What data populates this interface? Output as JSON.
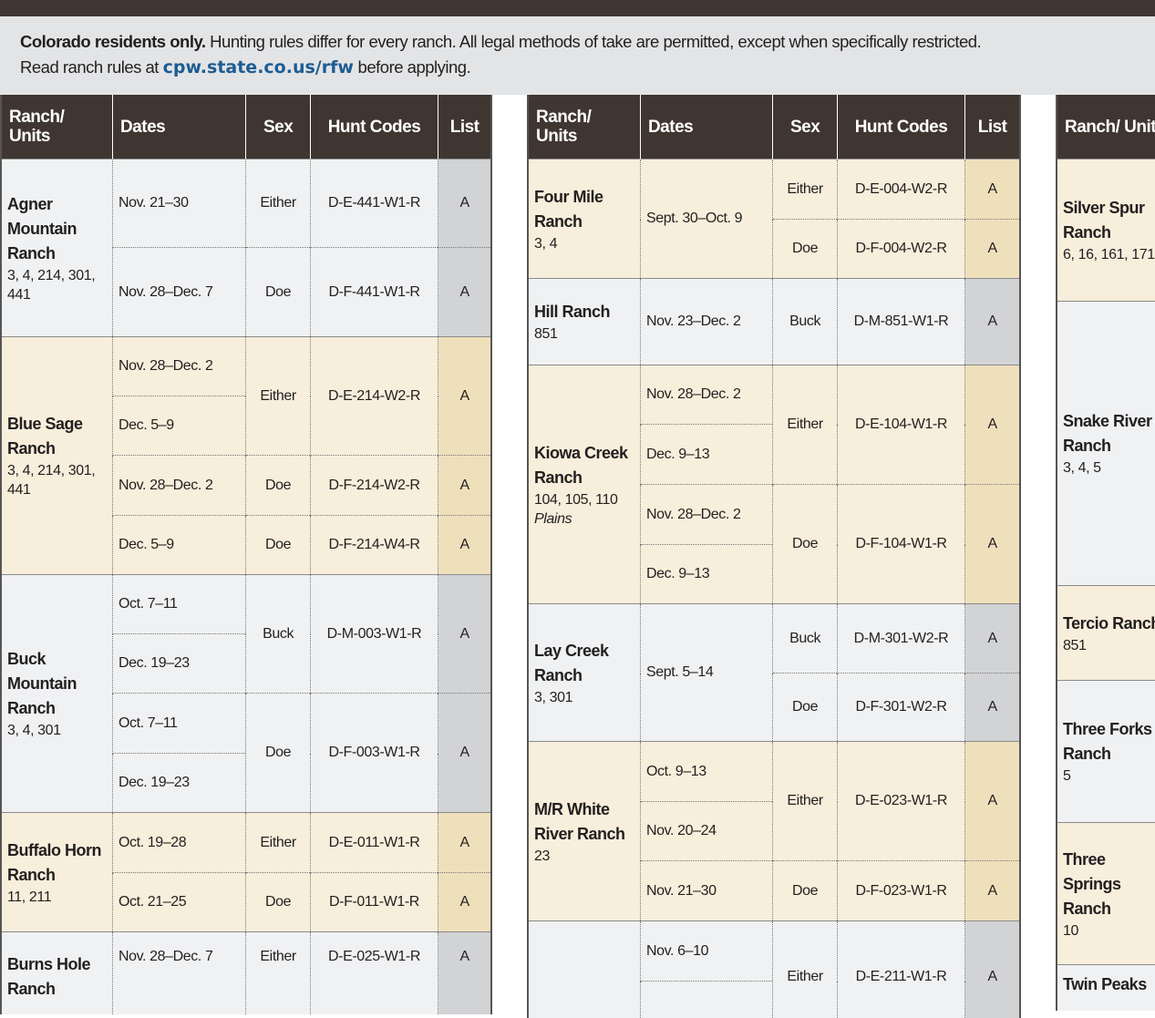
{
  "intro": {
    "lead": "Colorado residents only.",
    "text1": " Hunting rules differ for every ranch. All legal methods of take are permitted, except when specifically restricted.",
    "text2": "Read ranch rules at ",
    "url": "cpw.state.co.us/rfw",
    "text3": " before applying."
  },
  "headers": [
    "Ranch/ Units",
    "Dates",
    "Sex",
    "Hunt Codes",
    "List"
  ],
  "table1": [
    {
      "name": "Agner Mountain Ranch",
      "units": "3, 4, 214, 301, 441",
      "rows": [
        {
          "dates": "Nov. 21–30",
          "sex": "Either",
          "code": "D-E-441-W1-R",
          "list": "A"
        },
        {
          "dates": "Nov. 28–Dec. 7",
          "sex": "Doe",
          "code": "D-F-441-W1-R",
          "list": "A"
        }
      ]
    },
    {
      "name": "Blue Sage Ranch",
      "units": "3, 4, 214, 301, 441",
      "rows": [
        {
          "dates": "Nov. 28–Dec. 2",
          "sex": "Either",
          "code": "D-E-214-W2-R",
          "list": "A"
        },
        {
          "dates": "Dec. 5–9"
        },
        {
          "dates": "Nov. 28–Dec. 2",
          "sex": "Doe",
          "code": "D-F-214-W2-R",
          "list": "A"
        },
        {
          "dates": "Dec. 5–9",
          "sex": "Doe",
          "code": "D-F-214-W4-R",
          "list": "A"
        }
      ]
    },
    {
      "name": "Buck Mountain Ranch",
      "units": "3, 4, 301",
      "rows": [
        {
          "dates": "Oct. 7–11",
          "sex": "Buck",
          "code": "D-M-003-W1-R",
          "list": "A"
        },
        {
          "dates": "Dec. 19–23"
        },
        {
          "dates": "Oct. 7–11",
          "sex": "Doe",
          "code": "D-F-003-W1-R",
          "list": "A"
        },
        {
          "dates": "Dec. 19–23"
        }
      ]
    },
    {
      "name": "Buffalo Horn Ranch",
      "units": "11, 211",
      "rows": [
        {
          "dates": "Oct. 19–28",
          "sex": "Either",
          "code": "D-E-011-W1-R",
          "list": "A"
        },
        {
          "dates": "Oct. 21–25",
          "sex": "Doe",
          "code": "D-F-011-W1-R",
          "list": "A"
        }
      ]
    },
    {
      "name": "Burns Hole Ranch",
      "units": "",
      "rows": [
        {
          "dates": "Nov. 28–Dec. 7",
          "sex": "Either",
          "code": "D-E-025-W1-R",
          "list": "A"
        }
      ]
    }
  ],
  "table2": [
    {
      "name": "Four Mile Ranch",
      "units": "3, 4",
      "rows": [
        {
          "dates": "Sept. 30–Oct. 9",
          "sex": "Either",
          "code": "D-E-004-W2-R",
          "list": "A"
        },
        {
          "sex": "Doe",
          "code": "D-F-004-W2-R",
          "list": "A"
        }
      ]
    },
    {
      "name": "Hill Ranch",
      "units": "851",
      "rows": [
        {
          "dates": "Nov. 23–Dec. 2",
          "sex": "Buck",
          "code": "D-M-851-W1-R",
          "list": "A"
        }
      ]
    },
    {
      "name": "Kiowa Creek Ranch",
      "units": "104, 105, 110",
      "qual": "Plains",
      "rows": [
        {
          "dates": "Nov. 28–Dec. 2",
          "sex": "Either",
          "code": "D-E-104-W1-R",
          "list": "A"
        },
        {
          "dates": "Dec. 9–13"
        },
        {
          "dates": "Nov. 28–Dec. 2",
          "sex": "Doe",
          "code": "D-F-104-W1-R",
          "list": "A"
        },
        {
          "dates": "Dec. 9–13"
        }
      ]
    },
    {
      "name": "Lay Creek Ranch",
      "units": "3, 301",
      "rows": [
        {
          "dates": "Sept. 5–14",
          "sex": "Buck",
          "code": "D-M-301-W2-R",
          "list": "A"
        },
        {
          "sex": "Doe",
          "code": "D-F-301-W2-R",
          "list": "A"
        }
      ]
    },
    {
      "name": "M/R White River Ranch",
      "units": "23",
      "rows": [
        {
          "dates": "Oct. 9–13",
          "sex": "Either",
          "code": "D-E-023-W1-R",
          "list": "A"
        },
        {
          "dates": "Nov. 20–24"
        },
        {
          "dates": "Nov. 21–30",
          "sex": "Doe",
          "code": "D-F-023-W1-R",
          "list": "A"
        }
      ]
    },
    {
      "name": "",
      "units": "",
      "rows": [
        {
          "dates": "Nov. 6–10",
          "sex": "Either",
          "code": "D-E-211-W1-R",
          "list": "A"
        },
        {
          "dates": ""
        }
      ]
    }
  ],
  "table3": [
    {
      "name": "Silver Spur Ranch",
      "units": "6, 16, 161, 171"
    },
    {
      "name": "Snake River Ranch",
      "units": "3, 4, 5"
    },
    {
      "name": "Tercio Ranch",
      "units": "851"
    },
    {
      "name": "Three Forks Ranch",
      "units": "5"
    },
    {
      "name": "Three Springs Ranch",
      "units": "10"
    },
    {
      "name": "Twin Peaks",
      "units": ""
    }
  ]
}
